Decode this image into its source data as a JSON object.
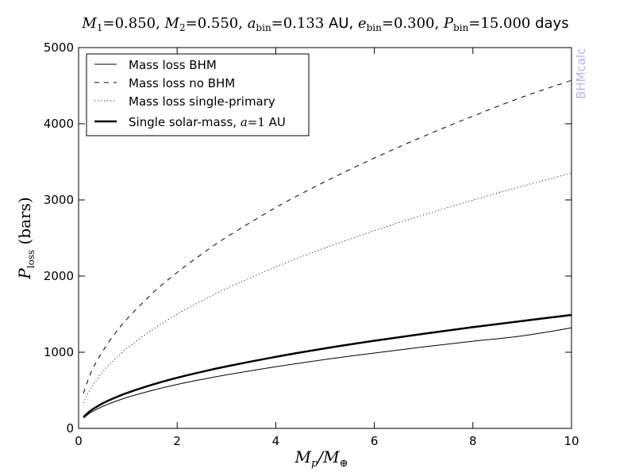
{
  "chart_data": {
    "type": "line",
    "title_parts": {
      "m1_sym": "M",
      "m1_sub": "1",
      "m1_val": "=0.850, ",
      "m2_sym": "M",
      "m2_sub": "2",
      "m2_val": "=0.550, ",
      "a_sym": "a",
      "a_sub": "bin",
      "a_val": "=0.133 ",
      "a_unit": "AU, ",
      "e_sym": "e",
      "e_sub": "bin",
      "e_val": "=0.300, ",
      "p_sym": "P",
      "p_sub": "bin",
      "p_val": "=15.000 ",
      "p_unit": "days"
    },
    "xlabel_parts": {
      "sym": "M",
      "sub": "p",
      "slash": "/",
      "sym2": "M",
      "sub2": "⊕"
    },
    "ylabel_parts": {
      "sym": "P",
      "sub": "loss",
      "unit": " (bars)"
    },
    "xlim": [
      0,
      10
    ],
    "ylim": [
      0,
      5000
    ],
    "x_ticks": [
      0,
      2,
      4,
      6,
      8,
      10
    ],
    "y_ticks": [
      0,
      1000,
      2000,
      3000,
      4000,
      5000
    ],
    "x_tick_labels": [
      "0",
      "2",
      "4",
      "6",
      "8",
      "10"
    ],
    "y_tick_labels": [
      "0",
      "1000",
      "2000",
      "3000",
      "4000",
      "5000"
    ],
    "grid": false,
    "legend_placement": "top-left",
    "x": [
      0.1,
      0.2,
      0.3,
      0.5,
      0.75,
      1,
      1.5,
      2,
      2.5,
      3,
      4,
      5,
      6,
      7,
      8,
      9,
      10
    ],
    "series": [
      {
        "name": "Mass loss BHM",
        "style": "solid",
        "values": [
          135,
          188,
          228,
          292,
          355,
          410,
          500,
          577,
          643,
          703,
          810,
          905,
          990,
          1070,
          1145,
          1215,
          1320
        ]
      },
      {
        "name": "Mass loss no BHM",
        "style": "dashed",
        "values": [
          460,
          650,
          800,
          1025,
          1255,
          1450,
          1775,
          2048,
          2290,
          2510,
          2900,
          3240,
          3550,
          3835,
          4100,
          4350,
          4570
        ]
      },
      {
        "name": "Mass loss single-primary",
        "style": "dotted",
        "values": [
          335,
          474,
          580,
          750,
          918,
          1060,
          1298,
          1499,
          1676,
          1836,
          2120,
          2370,
          2596,
          2804,
          2998,
          3180,
          3352
        ]
      },
      {
        "name": "Single solar-mass, ",
        "name_math_sym": "a",
        "name_math_val": "=1 ",
        "name_unit": "AU",
        "style": "thick",
        "values": [
          148,
          210,
          257,
          332,
          406,
          470,
          575,
          665,
          743,
          814,
          940,
          1051,
          1151,
          1243,
          1329,
          1410,
          1490
        ]
      }
    ],
    "watermark": "BHMcalc"
  },
  "colors": {
    "line": "#000000",
    "watermark": "#b3b3f5"
  }
}
